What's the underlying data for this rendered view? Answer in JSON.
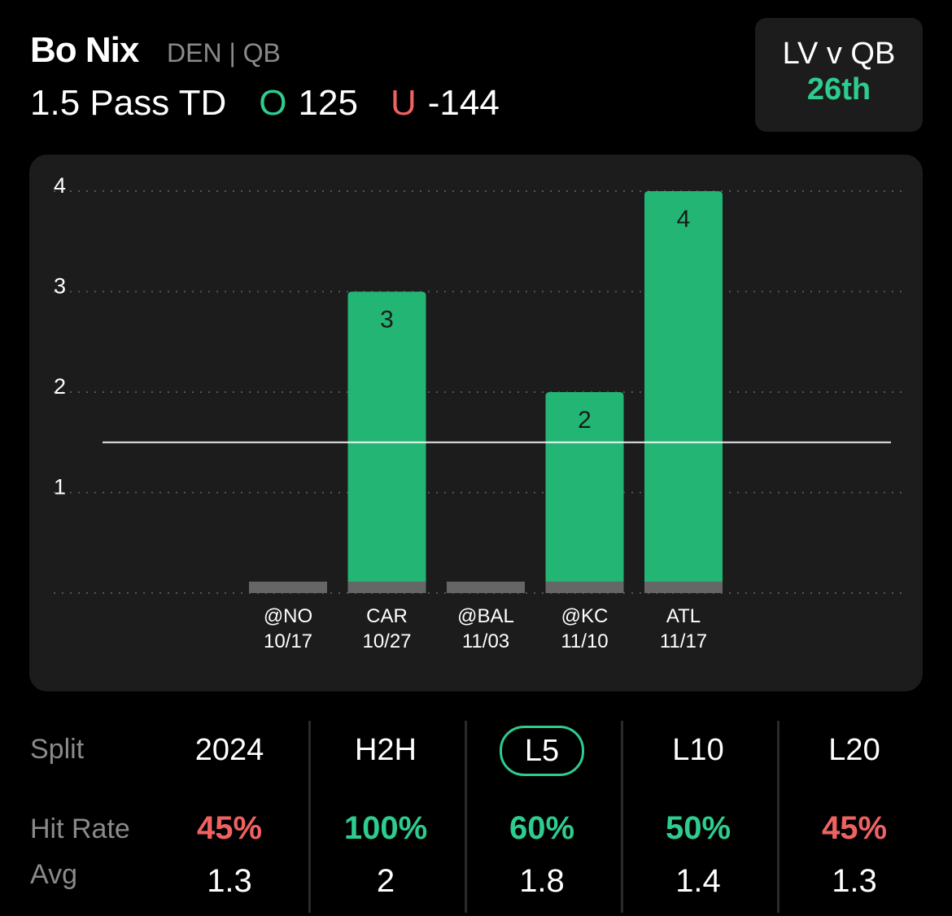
{
  "header": {
    "player_name": "Bo Nix",
    "player_meta": "DEN | QB",
    "prop": "1.5 Pass TD",
    "over_symbol": "O",
    "over_odds": "125",
    "under_symbol": "U",
    "under_odds": "-144"
  },
  "matchup": {
    "title": "LV v QB",
    "rank": "26th"
  },
  "colors": {
    "accent_green": "#2ecc8f",
    "bar_green": "#22b573",
    "miss_gray": "#666666",
    "red": "#f06262",
    "card_bg": "#1c1c1c"
  },
  "chart_data": {
    "type": "bar",
    "categories": [
      "@NO",
      "CAR",
      "@BAL",
      "@KC",
      "ATL"
    ],
    "dates": [
      "10/17",
      "10/27",
      "11/03",
      "11/10",
      "11/17"
    ],
    "values": [
      0,
      3,
      0,
      2,
      4
    ],
    "line": 1.5,
    "y_ticks": [
      "1",
      "2",
      "3",
      "4"
    ],
    "ylim": [
      0,
      4
    ],
    "grid": true
  },
  "splits": {
    "labels": {
      "split": "Split",
      "hit_rate": "Hit Rate",
      "avg": "Avg"
    },
    "columns": [
      {
        "name": "2024",
        "hit_rate": "45%",
        "avg": "1.3",
        "hit_color": "#f06262",
        "selected": false
      },
      {
        "name": "H2H",
        "hit_rate": "100%",
        "avg": "2",
        "hit_color": "#2ecc8f",
        "selected": false
      },
      {
        "name": "L5",
        "hit_rate": "60%",
        "avg": "1.8",
        "hit_color": "#2ecc8f",
        "selected": true
      },
      {
        "name": "L10",
        "hit_rate": "50%",
        "avg": "1.4",
        "hit_color": "#2ecc8f",
        "selected": false
      },
      {
        "name": "L20",
        "hit_rate": "45%",
        "avg": "1.3",
        "hit_color": "#f06262",
        "selected": false
      }
    ]
  }
}
